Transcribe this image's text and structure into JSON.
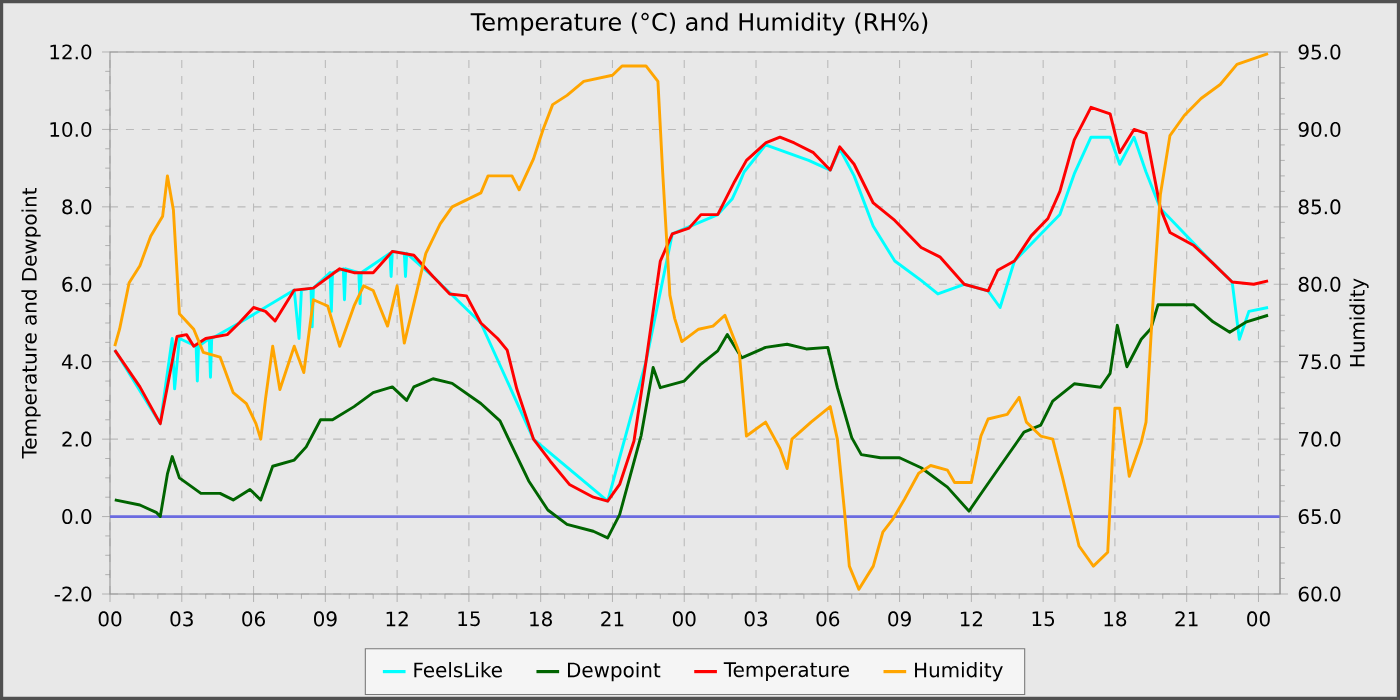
{
  "chart_data": {
    "type": "line",
    "title": "Temperature (°C) and Humidity (RH%)",
    "ylabel": "Temperature and Dewpoint",
    "y2label": "Humidity",
    "xlim": [
      0,
      48.9
    ],
    "ylim": [
      -2,
      12
    ],
    "y2lim": [
      60,
      95
    ],
    "xticks": [
      {
        "value": 0,
        "label": "00"
      },
      {
        "value": 3,
        "label": "03"
      },
      {
        "value": 6,
        "label": "06"
      },
      {
        "value": 9,
        "label": "09"
      },
      {
        "value": 12,
        "label": "12"
      },
      {
        "value": 15,
        "label": "15"
      },
      {
        "value": 18,
        "label": "18"
      },
      {
        "value": 21,
        "label": "21"
      },
      {
        "value": 24,
        "label": "00"
      },
      {
        "value": 27,
        "label": "03"
      },
      {
        "value": 30,
        "label": "06"
      },
      {
        "value": 33,
        "label": "09"
      },
      {
        "value": 36,
        "label": "12"
      },
      {
        "value": 39,
        "label": "15"
      },
      {
        "value": 42,
        "label": "18"
      },
      {
        "value": 45,
        "label": "21"
      },
      {
        "value": 48,
        "label": "00"
      }
    ],
    "yticks": [
      {
        "value": -2,
        "label": "-2.0"
      },
      {
        "value": 0,
        "label": "0.0"
      },
      {
        "value": 2,
        "label": "2.0"
      },
      {
        "value": 4,
        "label": "4.0"
      },
      {
        "value": 6,
        "label": "6.0"
      },
      {
        "value": 8,
        "label": "8.0"
      },
      {
        "value": 10,
        "label": "10.0"
      },
      {
        "value": 12,
        "label": "12.0"
      }
    ],
    "y2ticks": [
      {
        "value": 60,
        "label": "60.0"
      },
      {
        "value": 65,
        "label": "65.0"
      },
      {
        "value": 70,
        "label": "70.0"
      },
      {
        "value": 75,
        "label": "75.0"
      },
      {
        "value": 80,
        "label": "80.0"
      },
      {
        "value": 85,
        "label": "85.0"
      },
      {
        "value": 90,
        "label": "90.0"
      },
      {
        "value": 95,
        "label": "95.0"
      }
    ],
    "grid": true,
    "legend": "bottom",
    "marker": "none",
    "line_style": "solid",
    "ref_lines": [
      {
        "axis": "y",
        "value": 0,
        "color": "#6a6ae0"
      }
    ],
    "series": [
      {
        "name": "FeelsLike",
        "color": "#00ffff",
        "x": [
          0.2,
          2.1,
          2.6,
          2.7,
          2.9,
          3.6,
          3.65,
          3.7,
          4.15,
          4.2,
          4.25,
          5.4,
          7.7,
          7.9,
          8.0,
          8.4,
          8.45,
          8.5,
          9.2,
          9.25,
          9.3,
          9.75,
          9.8,
          9.85,
          10.4,
          10.45,
          10.5,
          11.7,
          11.75,
          11.8,
          12.3,
          12.35,
          12.4,
          13.5,
          15.5,
          17.7,
          20.8,
          22.4,
          23.5,
          25.4,
          26.0,
          26.3,
          26.5,
          27.4,
          29.2,
          30.1,
          30.5,
          31.1,
          31.9,
          32.8,
          33.9,
          34.6,
          35.7,
          36.7,
          37.2,
          37.8,
          39.7,
          40.3,
          41.0,
          41.8,
          42.2,
          42.8,
          43.3,
          43.9,
          46.1,
          46.9,
          47.2,
          47.6,
          48.4
        ],
        "values": [
          4.3,
          2.4,
          4.6,
          3.3,
          4.6,
          4.4,
          3.5,
          4.4,
          4.6,
          3.6,
          4.6,
          5.0,
          5.85,
          4.6,
          5.85,
          5.9,
          4.9,
          5.9,
          6.3,
          5.3,
          6.3,
          6.4,
          5.6,
          6.4,
          6.3,
          5.5,
          6.3,
          6.8,
          6.2,
          6.85,
          6.8,
          6.2,
          6.8,
          6.2,
          5.0,
          2.0,
          0.4,
          4.0,
          7.3,
          7.8,
          8.2,
          8.6,
          8.9,
          9.6,
          9.2,
          8.95,
          9.5,
          8.8,
          7.5,
          6.6,
          6.1,
          5.75,
          6.0,
          5.83,
          5.4,
          6.6,
          7.8,
          8.85,
          9.8,
          9.8,
          9.1,
          9.8,
          8.9,
          7.96,
          6.54,
          6.06,
          4.58,
          5.3,
          5.4
        ]
      },
      {
        "name": "Dewpoint",
        "color": "#006400",
        "x": [
          0.2,
          1.25,
          1.95,
          2.1,
          2.4,
          2.6,
          2.9,
          3.8,
          4.6,
          5.15,
          5.85,
          6.3,
          6.8,
          7.7,
          8.2,
          8.8,
          9.3,
          10.2,
          11.0,
          11.8,
          12.4,
          12.7,
          13.5,
          14.3,
          15.5,
          16.3,
          16.7,
          17.5,
          18.3,
          19.1,
          20.2,
          20.8,
          21.3,
          22.2,
          22.7,
          23.0,
          24.0,
          24.7,
          25.4,
          25.8,
          26.4,
          27.4,
          28.3,
          29.1,
          30.0,
          30.4,
          31.0,
          31.4,
          32.2,
          33.0,
          33.9,
          35.0,
          35.9,
          36.4,
          37.2,
          38.2,
          38.9,
          39.4,
          40.3,
          41.4,
          41.8,
          42.1,
          42.5,
          43.1,
          43.5,
          43.8,
          44.5,
          45.3,
          46.1,
          46.8,
          47.5,
          48.4
        ],
        "values": [
          0.43,
          0.3,
          0.1,
          0,
          1.1,
          1.55,
          1.0,
          0.6,
          0.6,
          0.43,
          0.7,
          0.43,
          1.3,
          1.46,
          1.8,
          2.5,
          2.5,
          2.84,
          3.2,
          3.35,
          3.0,
          3.35,
          3.56,
          3.44,
          2.92,
          2.47,
          1.95,
          0.92,
          0.17,
          -0.2,
          -0.38,
          -0.55,
          0.05,
          2.1,
          3.85,
          3.33,
          3.5,
          3.94,
          4.28,
          4.7,
          4.1,
          4.37,
          4.45,
          4.33,
          4.37,
          3.33,
          2.04,
          1.6,
          1.52,
          1.52,
          1.26,
          0.76,
          0.14,
          0.59,
          1.3,
          2.18,
          2.36,
          2.98,
          3.43,
          3.34,
          3.7,
          4.94,
          3.87,
          4.58,
          4.85,
          5.47,
          5.47,
          5.47,
          5.03,
          4.76,
          5.03,
          5.2
        ]
      },
      {
        "name": "Temperature",
        "color": "#ff0000",
        "x": [
          0.2,
          1.25,
          2.1,
          2.8,
          3.2,
          3.5,
          4.0,
          4.9,
          5.4,
          6.0,
          6.5,
          6.9,
          7.7,
          8.5,
          9.6,
          10.2,
          11.0,
          11.8,
          12.7,
          13.5,
          14.2,
          14.9,
          15.5,
          16.2,
          16.6,
          17.0,
          17.7,
          18.4,
          19.2,
          20.2,
          20.8,
          21.3,
          21.9,
          22.4,
          23.0,
          23.5,
          24.2,
          24.7,
          25.4,
          26.1,
          26.6,
          27.4,
          28.0,
          28.6,
          29.4,
          30.1,
          30.5,
          31.1,
          31.9,
          32.8,
          33.9,
          34.7,
          35.7,
          36.7,
          37.1,
          37.8,
          38.5,
          39.2,
          39.7,
          40.3,
          41.0,
          41.8,
          42.2,
          42.8,
          43.3,
          43.9,
          44.3,
          45.3,
          46.1,
          46.9,
          47.8,
          48.4
        ],
        "values": [
          4.3,
          3.35,
          2.4,
          4.65,
          4.7,
          4.4,
          4.6,
          4.7,
          5.0,
          5.4,
          5.3,
          5.05,
          5.85,
          5.9,
          6.4,
          6.3,
          6.3,
          6.85,
          6.75,
          6.2,
          5.75,
          5.7,
          5.0,
          4.6,
          4.3,
          3.3,
          2.0,
          1.43,
          0.83,
          0.5,
          0.4,
          0.83,
          1.95,
          4.0,
          6.6,
          7.3,
          7.45,
          7.8,
          7.8,
          8.65,
          9.2,
          9.65,
          9.8,
          9.65,
          9.4,
          8.95,
          9.55,
          9.1,
          8.1,
          7.65,
          6.95,
          6.7,
          6.0,
          5.83,
          6.36,
          6.6,
          7.25,
          7.7,
          8.4,
          9.73,
          10.57,
          10.4,
          9.4,
          10.0,
          9.9,
          7.96,
          7.34,
          7.0,
          6.54,
          6.06,
          6.0,
          6.09
        ]
      },
      {
        "name": "Humidity",
        "color": "#ffa500",
        "axis": "y2",
        "x": [
          0.2,
          0.4,
          0.8,
          1.25,
          1.7,
          2.2,
          2.4,
          2.65,
          2.9,
          3.5,
          3.9,
          4.6,
          5.15,
          5.7,
          6.1,
          6.3,
          6.5,
          6.8,
          7.1,
          7.7,
          8.1,
          8.5,
          9.1,
          9.6,
          10.2,
          10.6,
          11.0,
          11.6,
          12.0,
          12.3,
          12.8,
          13.2,
          13.8,
          14.3,
          15.5,
          15.8,
          16.8,
          17.1,
          17.7,
          18.1,
          18.5,
          19.1,
          19.8,
          21.0,
          21.4,
          22.4,
          22.9,
          23.1,
          23.4,
          23.6,
          23.9,
          24.6,
          25.2,
          25.7,
          26.3,
          26.6,
          27.4,
          28.0,
          28.3,
          28.5,
          29.3,
          30.1,
          30.4,
          30.7,
          30.9,
          31.3,
          31.9,
          32.3,
          32.7,
          33.2,
          33.8,
          34.3,
          35.0,
          35.3,
          36.0,
          36.4,
          36.7,
          37.5,
          38.0,
          38.3,
          38.9,
          39.4,
          39.8,
          40.5,
          41.1,
          41.7,
          42.0,
          42.2,
          42.6,
          43.1,
          43.3,
          43.6,
          43.9,
          44.3,
          44.9,
          45.6,
          46.4,
          47.1,
          48.4
        ],
        "values": [
          76.0,
          77.1,
          80.1,
          81.2,
          83.1,
          84.4,
          87.0,
          84.8,
          78.1,
          77.1,
          75.6,
          75.3,
          73.0,
          72.3,
          71.0,
          70.0,
          72.6,
          76.0,
          73.2,
          76.0,
          74.3,
          79.0,
          78.6,
          76.0,
          78.6,
          79.9,
          79.6,
          77.3,
          79.9,
          76.2,
          79.4,
          82.0,
          83.9,
          85.0,
          85.9,
          87.0,
          87.0,
          86.1,
          88.1,
          90.0,
          91.6,
          92.2,
          93.1,
          93.5,
          94.1,
          94.1,
          93.1,
          87.2,
          79.3,
          77.8,
          76.3,
          77.1,
          77.3,
          78.0,
          75.6,
          70.2,
          71.1,
          69.4,
          68.1,
          70.0,
          71.1,
          72.1,
          70.0,
          65.3,
          61.8,
          60.3,
          61.8,
          64.0,
          64.8,
          66.1,
          67.8,
          68.3,
          68.0,
          67.2,
          67.2,
          70.2,
          71.3,
          71.6,
          72.7,
          71.1,
          70.2,
          70.0,
          67.6,
          63.1,
          61.8,
          62.7,
          72.0,
          72.0,
          67.6,
          69.8,
          71.1,
          79.1,
          85.8,
          89.6,
          90.9,
          92.0,
          92.9,
          94.2,
          94.9
        ]
      }
    ]
  }
}
